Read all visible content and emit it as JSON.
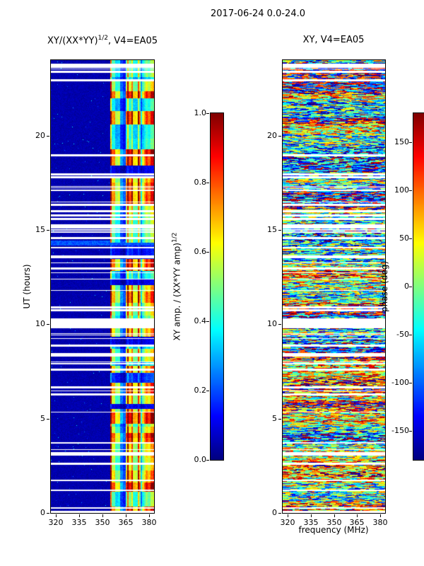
{
  "figure_title": "2017-06-24 0.0-24.0",
  "chart_data": [
    {
      "id": "left-panel",
      "type": "heatmap",
      "title_base": "XY/(XX*YY)",
      "title_sup": "1/2",
      "title_suffix": ", V4=EA05",
      "xlabel": "",
      "ylabel": "UT (hours)",
      "xlim": [
        317,
        383
      ],
      "ylim": [
        0,
        24
      ],
      "xticks": [
        320,
        335,
        350,
        365,
        380
      ],
      "xtick_labels": [
        "320",
        "335",
        "350",
        "365",
        "380"
      ],
      "yticks": [
        0,
        5,
        10,
        15,
        20
      ],
      "ytick_labels": [
        "0",
        "5",
        "10",
        "15",
        "20"
      ],
      "colorbar": {
        "label_base": "XY amp. / (XX*YY amp)",
        "label_sup": "1/2",
        "colormap": "jet",
        "range": [
          0,
          1
        ],
        "ticks": [
          0,
          0.2,
          0.4,
          0.6,
          0.8,
          1.0
        ],
        "tick_labels": [
          "0.0",
          "0.2",
          "0.4",
          "0.6",
          "0.8",
          "1.0"
        ]
      },
      "content_summary": "Normalized cross-correlation amplitude dynamic spectrum over 24 h: near-zero (dark blue) below ~355 MHz; strong vertically-striped RFI band between ~355 and ~383 MHz reaching saturation (red); many horizontal white rows are missing-data gaps; faint enhanced cyan row near 14.3 UT.",
      "render": {
        "seed": 42,
        "band_mhz": [
          355,
          382.5
        ],
        "gap_count": 62,
        "wide_gap_hour": [
          9.8,
          10.3
        ],
        "top_gap_hour": [
          23.6,
          23.8
        ],
        "enhanced_row_hour": [
          14.2,
          14.45
        ]
      }
    },
    {
      "id": "right-panel",
      "type": "heatmap",
      "title_base": "XY, V4=EA05",
      "title_sup": "",
      "title_suffix": "",
      "xlabel": "frequency (MHz)",
      "ylabel": "",
      "xlim": [
        317,
        383
      ],
      "ylim": [
        0,
        24
      ],
      "xticks": [
        320,
        335,
        350,
        365,
        380
      ],
      "xtick_labels": [
        "320",
        "335",
        "350",
        "365",
        "380"
      ],
      "yticks": [
        0,
        5,
        10,
        15,
        20
      ],
      "ytick_labels": [
        "0",
        "5",
        "10",
        "15",
        "20"
      ],
      "colorbar": {
        "label_base": "phase (deg)",
        "label_sup": "",
        "colormap": "jet",
        "range": [
          -180,
          180
        ],
        "ticks": [
          150,
          100,
          50,
          0,
          -50,
          -100,
          -150
        ],
        "tick_labels": [
          "150",
          "100",
          "50",
          "0",
          "-50",
          "-100",
          "-150"
        ]
      },
      "content_summary": "Cross-correlation phase dynamic spectrum over 24 h: pseudo-random wrapped phase across the full band producing mottled multicolor (jet) streaks with horizontal coherence; same horizontal white data-gap rows as the amplitude panel.",
      "render": {
        "seed": 1337
      }
    }
  ]
}
